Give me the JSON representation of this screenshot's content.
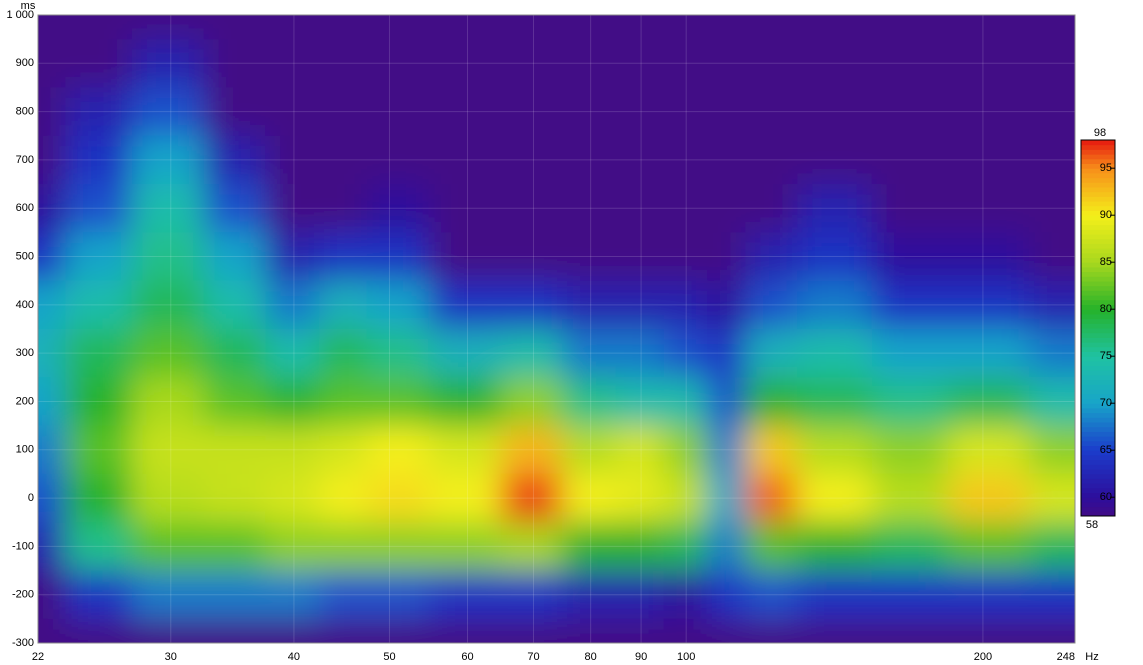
{
  "chart_data": {
    "type": "heatmap",
    "x_unit": "Hz",
    "y_unit": "ms",
    "x": [
      22,
      25,
      30,
      35,
      40,
      45,
      50,
      60,
      70,
      80,
      90,
      100,
      110,
      120,
      140,
      170,
      200,
      248
    ],
    "y": [
      1000,
      900,
      800,
      700,
      600,
      500,
      400,
      300,
      200,
      100,
      0,
      -100,
      -200,
      -300
    ],
    "z": [
      [
        58,
        58,
        58,
        58,
        58,
        58,
        58,
        58,
        58,
        58,
        58,
        58,
        58,
        58,
        58,
        58,
        58,
        58
      ],
      [
        58,
        58,
        62,
        58,
        58,
        58,
        58,
        58,
        58,
        58,
        58,
        58,
        58,
        58,
        58,
        58,
        58,
        58
      ],
      [
        58,
        62,
        66,
        58,
        58,
        58,
        58,
        58,
        58,
        58,
        58,
        58,
        58,
        58,
        58,
        58,
        58,
        58
      ],
      [
        58,
        64,
        70,
        62,
        58,
        58,
        58,
        58,
        58,
        58,
        58,
        58,
        58,
        58,
        58,
        58,
        58,
        58
      ],
      [
        60,
        66,
        74,
        66,
        58,
        58,
        60,
        58,
        58,
        58,
        58,
        58,
        58,
        58,
        62,
        58,
        58,
        58
      ],
      [
        64,
        70,
        76,
        70,
        62,
        64,
        64,
        58,
        58,
        58,
        58,
        58,
        58,
        62,
        64,
        60,
        60,
        58
      ],
      [
        70,
        74,
        78,
        74,
        68,
        72,
        70,
        64,
        64,
        62,
        62,
        62,
        60,
        66,
        68,
        64,
        64,
        62
      ],
      [
        72,
        78,
        82,
        78,
        74,
        78,
        76,
        72,
        74,
        68,
        68,
        66,
        64,
        72,
        74,
        70,
        70,
        68
      ],
      [
        70,
        80,
        85,
        82,
        80,
        82,
        82,
        80,
        84,
        76,
        74,
        74,
        66,
        80,
        78,
        76,
        78,
        74
      ],
      [
        68,
        82,
        87,
        87,
        87,
        88,
        90,
        88,
        93,
        86,
        88,
        84,
        68,
        92,
        86,
        84,
        88,
        84
      ],
      [
        66,
        80,
        86,
        87,
        88,
        90,
        91,
        90,
        97,
        90,
        89,
        87,
        70,
        96,
        90,
        86,
        92,
        88
      ],
      [
        62,
        76,
        82,
        82,
        84,
        84,
        84,
        84,
        85,
        80,
        80,
        78,
        68,
        82,
        80,
        78,
        82,
        78
      ],
      [
        58,
        64,
        68,
        68,
        68,
        66,
        66,
        64,
        64,
        62,
        62,
        60,
        64,
        66,
        64,
        64,
        64,
        64
      ],
      [
        58,
        58,
        58,
        58,
        58,
        58,
        58,
        58,
        58,
        58,
        58,
        58,
        58,
        58,
        58,
        58,
        58,
        58
      ]
    ],
    "xlim": [
      22,
      248
    ],
    "xticks": [
      22,
      30,
      40,
      50,
      60,
      70,
      80,
      90,
      100,
      200,
      248
    ],
    "xscale": "log",
    "ylim": [
      -300,
      1000
    ],
    "yticks": [
      -300,
      -200,
      -100,
      0,
      100,
      200,
      300,
      400,
      500,
      600,
      700,
      800,
      900,
      {
        "value": 1000,
        "label": "1 000"
      }
    ],
    "grid": true,
    "clim": [
      58,
      98
    ],
    "cticks": [
      60,
      65,
      70,
      75,
      80,
      85,
      90,
      95
    ],
    "colorscale": [
      [
        58,
        "#420c86"
      ],
      [
        60,
        "#2d0e9c"
      ],
      [
        65,
        "#1b3ccb"
      ],
      [
        70,
        "#18a4c9"
      ],
      [
        75,
        "#1fc2a2"
      ],
      [
        80,
        "#25b22a"
      ],
      [
        85,
        "#a8d81e"
      ],
      [
        90,
        "#f4ef1a"
      ],
      [
        95,
        "#f78e1a"
      ],
      [
        98,
        "#e6180f"
      ]
    ]
  }
}
